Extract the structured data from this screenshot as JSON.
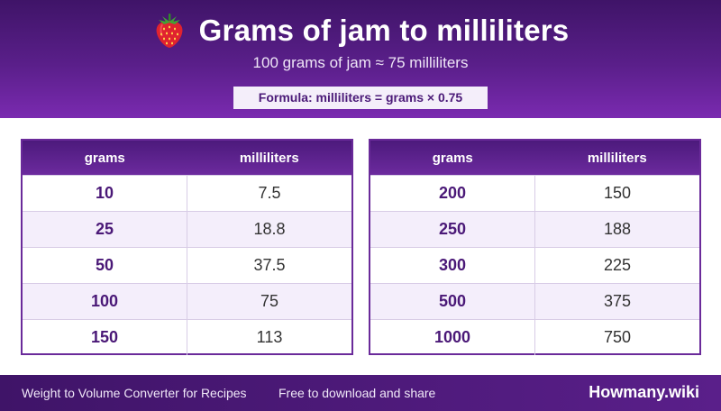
{
  "header": {
    "title": "Grams of jam to milliliters",
    "subtitle": "100 grams of jam ≈ 75 milliliters",
    "formula": "Formula: milliliters = grams × 0.75",
    "icon": "strawberry-icon"
  },
  "tables": {
    "left": {
      "col_grams": "grams",
      "col_ml": "milliliters",
      "rows": [
        {
          "grams": "10",
          "ml": "7.5"
        },
        {
          "grams": "25",
          "ml": "18.8"
        },
        {
          "grams": "50",
          "ml": "37.5"
        },
        {
          "grams": "100",
          "ml": "75"
        },
        {
          "grams": "150",
          "ml": "113"
        }
      ]
    },
    "right": {
      "col_grams": "grams",
      "col_ml": "milliliters",
      "rows": [
        {
          "grams": "200",
          "ml": "150"
        },
        {
          "grams": "250",
          "ml": "188"
        },
        {
          "grams": "300",
          "ml": "225"
        },
        {
          "grams": "500",
          "ml": "375"
        },
        {
          "grams": "1000",
          "ml": "750"
        }
      ]
    }
  },
  "footer": {
    "site_name": "Weight to Volume Converter for Recipes",
    "tagline": "Free to download and share",
    "brand": "Howmany.wiki"
  },
  "colors": {
    "primary": "#5a1f8a",
    "accent_text": "#4a1877",
    "row_alt": "#f4eefb"
  }
}
